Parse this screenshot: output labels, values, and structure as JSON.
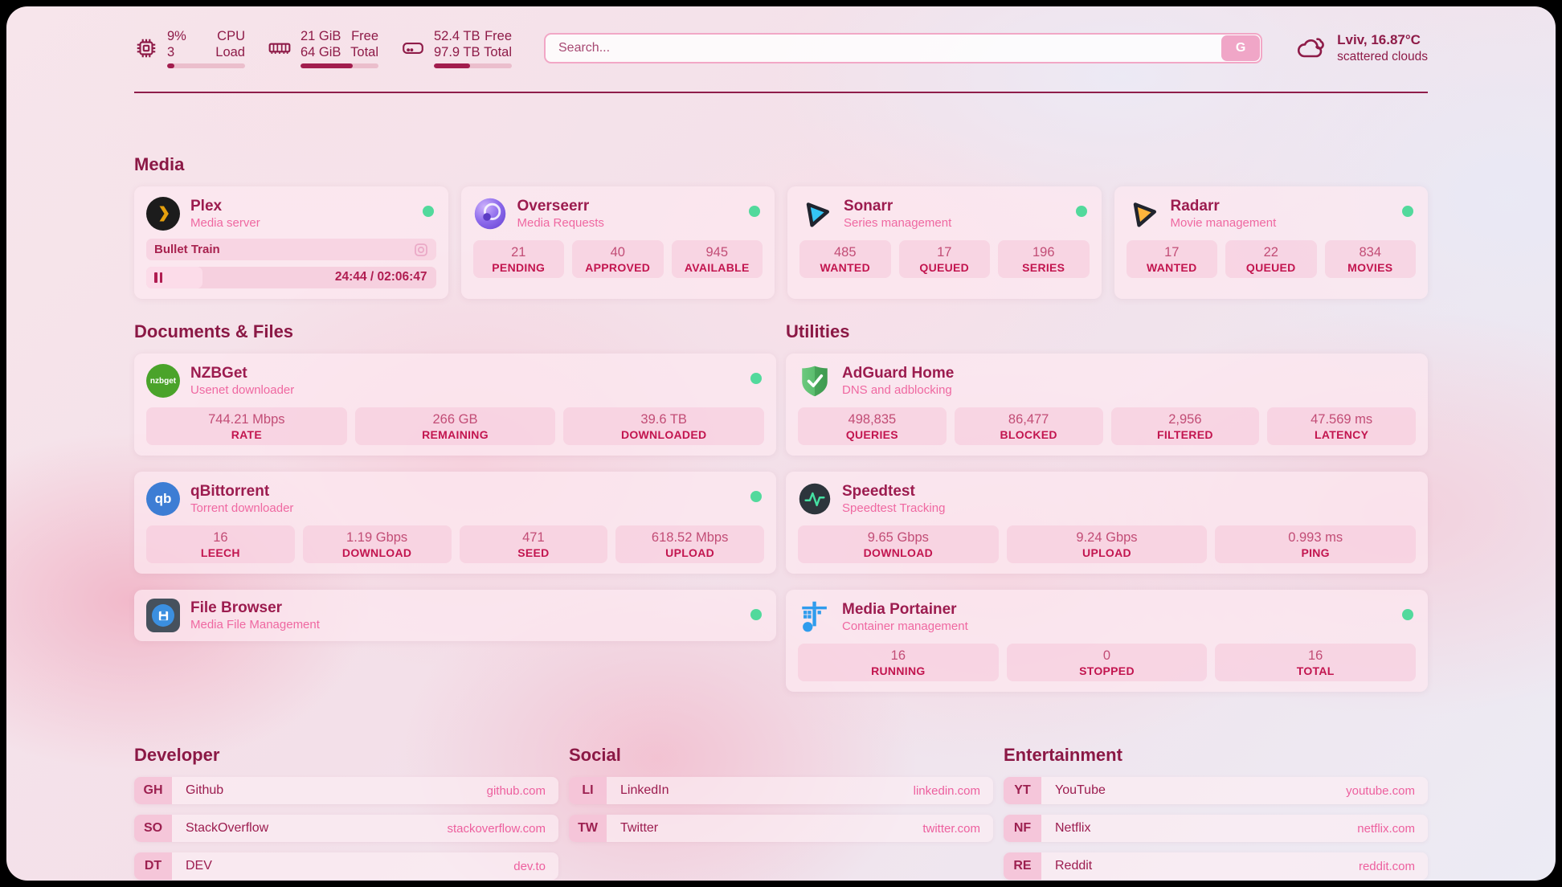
{
  "topbar": {
    "stats": [
      {
        "icon": "cpu-icon",
        "value1": "9%",
        "value2": "3",
        "label1": "CPU",
        "label2": "Load",
        "progress": 9
      },
      {
        "icon": "ram-icon",
        "value1": "21 GiB",
        "value2": "64 GiB",
        "label1": "Free",
        "label2": "Total",
        "progress": 67
      },
      {
        "icon": "disk-icon",
        "value1": "52.4 TB",
        "value2": "97.9 TB",
        "label1": "Free",
        "label2": "Total",
        "progress": 46
      }
    ],
    "search": {
      "placeholder": "Search...",
      "button_label": "G"
    },
    "weather": {
      "location": "Lviv, 16.87°C",
      "condition": "scattered clouds"
    }
  },
  "sections": {
    "media": {
      "heading": "Media",
      "plex": {
        "name": "Plex",
        "subtitle": "Media server",
        "status": "online",
        "now_playing": "Bullet Train",
        "time": "24:44 / 02:06:47",
        "progress": 19.5
      },
      "overseerr": {
        "name": "Overseerr",
        "subtitle": "Media Requests",
        "status": "online",
        "stats": [
          {
            "value": "21",
            "label": "PENDING"
          },
          {
            "value": "40",
            "label": "APPROVED"
          },
          {
            "value": "945",
            "label": "AVAILABLE"
          }
        ]
      },
      "sonarr": {
        "name": "Sonarr",
        "subtitle": "Series management",
        "status": "online",
        "stats": [
          {
            "value": "485",
            "label": "WANTED"
          },
          {
            "value": "17",
            "label": "QUEUED"
          },
          {
            "value": "196",
            "label": "SERIES"
          }
        ]
      },
      "radarr": {
        "name": "Radarr",
        "subtitle": "Movie management",
        "status": "online",
        "stats": [
          {
            "value": "17",
            "label": "WANTED"
          },
          {
            "value": "22",
            "label": "QUEUED"
          },
          {
            "value": "834",
            "label": "MOVIES"
          }
        ]
      }
    },
    "documents": {
      "heading": "Documents & Files",
      "nzbget": {
        "name": "NZBGet",
        "subtitle": "Usenet downloader",
        "icon_text": "nzbget",
        "status": "online",
        "stats": [
          {
            "value": "744.21 Mbps",
            "label": "RATE"
          },
          {
            "value": "266 GB",
            "label": "REMAINING"
          },
          {
            "value": "39.6 TB",
            "label": "DOWNLOADED"
          }
        ]
      },
      "qbittorrent": {
        "name": "qBittorrent",
        "subtitle": "Torrent downloader",
        "icon_text": "qb",
        "status": "online",
        "stats": [
          {
            "value": "16",
            "label": "LEECH"
          },
          {
            "value": "1.19 Gbps",
            "label": "DOWNLOAD"
          },
          {
            "value": "471",
            "label": "SEED"
          },
          {
            "value": "618.52 Mbps",
            "label": "UPLOAD"
          }
        ]
      },
      "filebrowser": {
        "name": "File Browser",
        "subtitle": "Media File Management",
        "status": "online"
      }
    },
    "utilities": {
      "heading": "Utilities",
      "adguard": {
        "name": "AdGuard Home",
        "subtitle": "DNS and adblocking",
        "stats": [
          {
            "value": "498,835",
            "label": "QUERIES"
          },
          {
            "value": "86,477",
            "label": "BLOCKED"
          },
          {
            "value": "2,956",
            "label": "FILTERED"
          },
          {
            "value": "47.569 ms",
            "label": "LATENCY"
          }
        ]
      },
      "speedtest": {
        "name": "Speedtest",
        "subtitle": "Speedtest Tracking",
        "stats": [
          {
            "value": "9.65 Gbps",
            "label": "DOWNLOAD"
          },
          {
            "value": "9.24 Gbps",
            "label": "UPLOAD"
          },
          {
            "value": "0.993 ms",
            "label": "PING"
          }
        ]
      },
      "portainer": {
        "name": "Media Portainer",
        "subtitle": "Container management",
        "status": "online",
        "stats": [
          {
            "value": "16",
            "label": "RUNNING"
          },
          {
            "value": "0",
            "label": "STOPPED"
          },
          {
            "value": "16",
            "label": "TOTAL"
          }
        ]
      }
    },
    "developer": {
      "heading": "Developer",
      "links": [
        {
          "abbr": "GH",
          "name": "Github",
          "url": "github.com"
        },
        {
          "abbr": "SO",
          "name": "StackOverflow",
          "url": "stackoverflow.com"
        },
        {
          "abbr": "DT",
          "name": "DEV",
          "url": "dev.to"
        }
      ]
    },
    "social": {
      "heading": "Social",
      "links": [
        {
          "abbr": "LI",
          "name": "LinkedIn",
          "url": "linkedin.com"
        },
        {
          "abbr": "TW",
          "name": "Twitter",
          "url": "twitter.com"
        }
      ]
    },
    "entertainment": {
      "heading": "Entertainment",
      "links": [
        {
          "abbr": "YT",
          "name": "YouTube",
          "url": "youtube.com"
        },
        {
          "abbr": "NF",
          "name": "Netflix",
          "url": "netflix.com"
        },
        {
          "abbr": "RE",
          "name": "Reddit",
          "url": "reddit.com"
        }
      ]
    }
  },
  "colors": {
    "accent": "#8f1d4a",
    "subtitle_pink": "#ef68a1",
    "status_online": "#52d99c"
  }
}
